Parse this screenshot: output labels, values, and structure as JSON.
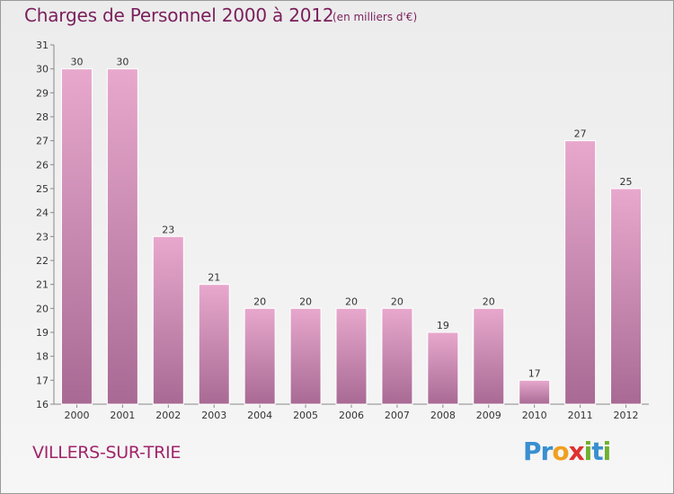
{
  "header": {
    "title": "Charges de Personnel 2000 à 2012",
    "subtitle": "(en milliers d'€)"
  },
  "footer": {
    "place": "VILLERS-SUR-TRIE",
    "logo": [
      "P",
      "r",
      "o",
      "x",
      "i",
      "t",
      "i"
    ]
  },
  "colors": {
    "bar_top": "#e8a8cd",
    "bar_bottom": "#a86a94",
    "text_accent": "#7a1f5b",
    "logo": [
      "#3a8fd0",
      "#3a8fd0",
      "#f0a020",
      "#e03030",
      "#70b030",
      "#3a8fd0",
      "#70b030"
    ]
  },
  "chart_data": {
    "type": "bar",
    "title": "Charges de Personnel 2000 à 2012",
    "subtitle": "(en milliers d'€)",
    "categories": [
      "2000",
      "2001",
      "2002",
      "2003",
      "2004",
      "2005",
      "2006",
      "2007",
      "2008",
      "2009",
      "2010",
      "2011",
      "2012"
    ],
    "values": [
      30,
      30,
      23,
      21,
      20,
      20,
      20,
      20,
      19,
      20,
      17,
      27,
      25
    ],
    "ylim": [
      16,
      31
    ],
    "yticks": [
      16,
      17,
      18,
      19,
      20,
      21,
      22,
      23,
      24,
      25,
      26,
      27,
      28,
      29,
      30,
      31
    ],
    "grid": false,
    "data_labels": true
  }
}
